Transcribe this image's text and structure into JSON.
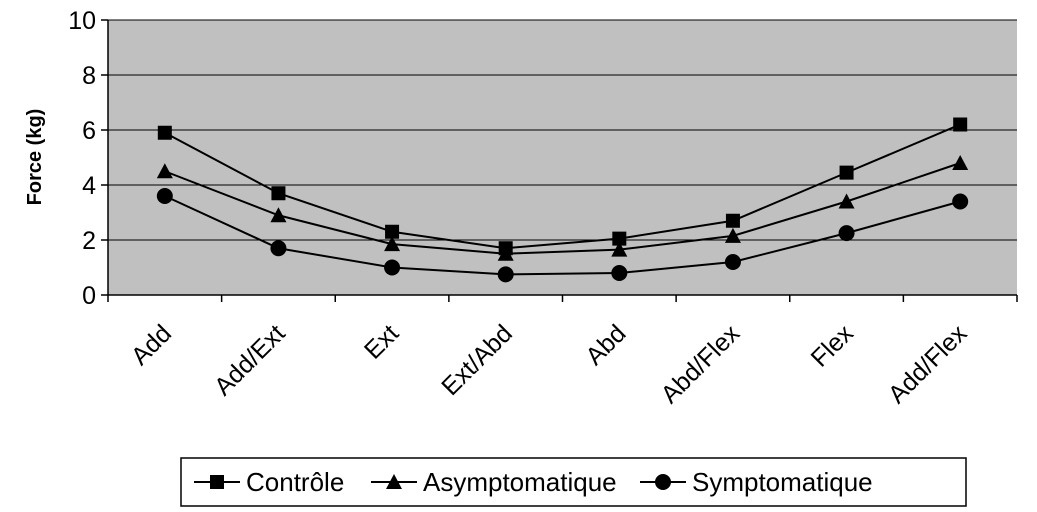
{
  "chart_data": {
    "type": "line",
    "title": "",
    "xlabel": "",
    "ylabel": "Force (kg)",
    "ylim": [
      0,
      10
    ],
    "yticks": [
      0,
      2,
      4,
      6,
      8,
      10
    ],
    "grid": true,
    "legend": "bottom",
    "categories": [
      "Add",
      "Add/Ext",
      "Ext",
      "Ext/Abd",
      "Abd",
      "Abd/Flex",
      "Flex",
      "Add/Flex"
    ],
    "series": [
      {
        "name": "Contrôle",
        "marker": "square",
        "values": [
          5.9,
          3.7,
          2.3,
          1.7,
          2.05,
          2.7,
          4.45,
          6.2
        ]
      },
      {
        "name": "Asymptomatique",
        "marker": "triangle",
        "values": [
          4.5,
          2.9,
          1.85,
          1.5,
          1.65,
          2.15,
          3.4,
          4.8
        ]
      },
      {
        "name": "Symptomatique",
        "marker": "circle",
        "values": [
          3.6,
          1.7,
          1.0,
          0.75,
          0.8,
          1.2,
          2.25,
          3.4
        ]
      }
    ],
    "colors": {
      "plot_background": "#c0c0c0",
      "line": "#000000",
      "gridline": "#000000"
    }
  }
}
